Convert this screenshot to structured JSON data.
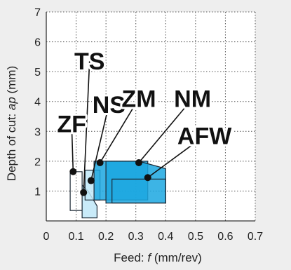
{
  "chart_data": {
    "type": "area",
    "xlabel_parts": [
      "Feed: ",
      "f",
      "  (mm/rev)"
    ],
    "ylabel_parts": [
      "Depth of cut: ",
      "ap",
      " (mm)"
    ],
    "xlim": [
      0,
      0.7
    ],
    "ylim": [
      0,
      7
    ],
    "xticks": [
      0,
      0.1,
      0.2,
      0.3,
      0.4,
      0.5,
      0.6,
      0.7
    ],
    "yticks": [
      1,
      2,
      3,
      4,
      5,
      6,
      7
    ],
    "xtick_labels": [
      "0",
      "0.1",
      "0.2",
      "0.3",
      "0.4",
      "0.5",
      "0.6",
      "0.7"
    ],
    "ytick_labels": [
      "1",
      "2",
      "3",
      "4",
      "5",
      "6",
      "7"
    ],
    "grid": true,
    "colors": {
      "background": "#eeeeee",
      "plot_area": "#ffffff",
      "grid": "#555555",
      "region_fill_dark": "#1ba7e0",
      "region_fill_light": "#bfe8f8",
      "region_stroke": "#1d2a36",
      "leader": "#111111"
    },
    "regions": [
      {
        "name": "ZF",
        "fill": "none",
        "poly": [
          [
            0.08,
            0.35
          ],
          [
            0.12,
            0.35
          ],
          [
            0.12,
            1.65
          ],
          [
            0.08,
            1.65
          ]
        ],
        "anchor": [
          0.09,
          1.65
        ],
        "label": [
          0.085,
          3.25
        ]
      },
      {
        "name": "TS",
        "fill": "light",
        "poly": [
          [
            0.12,
            0.1
          ],
          [
            0.17,
            0.1
          ],
          [
            0.17,
            0.5
          ],
          [
            0.14,
            1.0
          ],
          [
            0.12,
            1.2
          ]
        ],
        "anchor": [
          0.125,
          0.95
        ],
        "label": [
          0.145,
          5.35
        ]
      },
      {
        "name": "NS",
        "fill": "light",
        "poly": [
          [
            0.13,
            0.7
          ],
          [
            0.18,
            0.7
          ],
          [
            0.18,
            1.7
          ],
          [
            0.13,
            1.7
          ]
        ],
        "anchor": [
          0.15,
          1.35
        ],
        "label": [
          0.21,
          3.9
        ]
      },
      {
        "name": "ZM",
        "fill": "dark",
        "poly": [
          [
            0.16,
            0.7
          ],
          [
            0.34,
            0.7
          ],
          [
            0.34,
            2.0
          ],
          [
            0.16,
            2.0
          ]
        ],
        "anchor": [
          0.18,
          1.95
        ],
        "label": [
          0.31,
          4.1
        ]
      },
      {
        "name": "NM",
        "fill": "dark",
        "poly": [
          [
            0.2,
            0.6
          ],
          [
            0.4,
            0.6
          ],
          [
            0.4,
            1.75
          ],
          [
            0.31,
            2.0
          ],
          [
            0.2,
            2.0
          ]
        ],
        "anchor": [
          0.31,
          1.95
        ],
        "label": [
          0.49,
          4.1
        ]
      },
      {
        "name": "AFW",
        "fill": "none",
        "poly": [
          [
            0.22,
            0.6
          ],
          [
            0.4,
            0.6
          ],
          [
            0.4,
            1.4
          ],
          [
            0.22,
            1.4
          ]
        ],
        "anchor": [
          0.34,
          1.45
        ],
        "label": [
          0.53,
          2.85
        ]
      }
    ]
  }
}
